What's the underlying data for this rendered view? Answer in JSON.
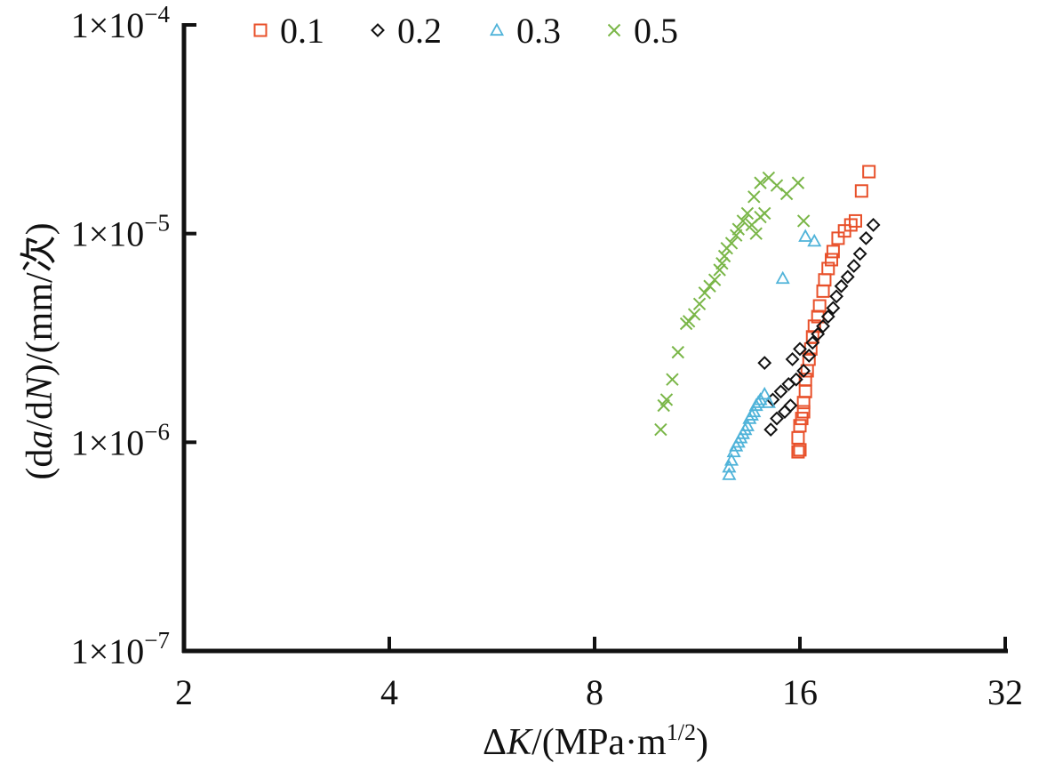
{
  "chart_data": {
    "type": "scatter",
    "title": "",
    "xlabel": "ΔK/(MPa·m^1/2)",
    "xlabel_parts": {
      "delta": "Δ",
      "var": "K",
      "unit": "/(MPa·m",
      "sup": "1/2",
      "close": ")"
    },
    "ylabel": "(da/dN)/(mm/次)",
    "ylabel_parts": {
      "p1": "(d",
      "a": "a",
      "p2": "/d",
      "N": "N",
      "p3": ")/(mm/次)"
    },
    "x_scale": "log2",
    "y_scale": "log10",
    "xlim": [
      2,
      32
    ],
    "ylim": [
      1e-07,
      0.0001
    ],
    "x_ticks": [
      2,
      4,
      8,
      16,
      32
    ],
    "x_tick_labels": [
      "2",
      "4",
      "8",
      "16",
      "32"
    ],
    "y_ticks": [
      1e-07,
      1e-06,
      1e-05,
      0.0001
    ],
    "y_tick_labels": [
      {
        "base": "1×10",
        "exp": "−7"
      },
      {
        "base": "1×10",
        "exp": "−6"
      },
      {
        "base": "1×10",
        "exp": "−5"
      },
      {
        "base": "1×10",
        "exp": "−4"
      }
    ],
    "grid": false,
    "legend_position": "top",
    "series": [
      {
        "name": "0.1",
        "marker": "square",
        "color": "#e8502a",
        "points": [
          [
            15.9,
            9e-07
          ],
          [
            16.0,
            9.2e-07
          ],
          [
            15.9,
            1.05e-06
          ],
          [
            16.0,
            1.2e-06
          ],
          [
            16.1,
            1.3e-06
          ],
          [
            16.2,
            1.4e-06
          ],
          [
            16.2,
            1.55e-06
          ],
          [
            16.3,
            1.75e-06
          ],
          [
            16.3,
            2e-06
          ],
          [
            16.4,
            2.2e-06
          ],
          [
            16.5,
            2.5e-06
          ],
          [
            16.6,
            2.8e-06
          ],
          [
            16.7,
            3.2e-06
          ],
          [
            16.8,
            3.6e-06
          ],
          [
            17.0,
            4e-06
          ],
          [
            17.1,
            4.5e-06
          ],
          [
            17.3,
            5.3e-06
          ],
          [
            17.4,
            6e-06
          ],
          [
            17.6,
            6.8e-06
          ],
          [
            17.8,
            7.5e-06
          ],
          [
            17.9,
            8.2e-06
          ],
          [
            18.2,
            9.5e-06
          ],
          [
            18.6,
            1.03e-05
          ],
          [
            19.0,
            1.1e-05
          ],
          [
            19.3,
            1.15e-05
          ],
          [
            19.7,
            1.6e-05
          ],
          [
            20.2,
            1.98e-05
          ]
        ]
      },
      {
        "name": "0.2",
        "marker": "diamond",
        "color": "#111111",
        "points": [
          [
            14.5,
            1.15e-06
          ],
          [
            14.8,
            1.3e-06
          ],
          [
            15.2,
            1.4e-06
          ],
          [
            15.5,
            1.5e-06
          ],
          [
            14.6,
            1.6e-06
          ],
          [
            15.0,
            1.75e-06
          ],
          [
            15.4,
            1.9e-06
          ],
          [
            15.8,
            2e-06
          ],
          [
            16.2,
            2.2e-06
          ],
          [
            14.2,
            2.4e-06
          ],
          [
            15.6,
            2.5e-06
          ],
          [
            16.5,
            2.6e-06
          ],
          [
            16.0,
            2.8e-06
          ],
          [
            16.7,
            3e-06
          ],
          [
            17.0,
            3.3e-06
          ],
          [
            17.3,
            3.6e-06
          ],
          [
            17.6,
            4e-06
          ],
          [
            17.9,
            4.4e-06
          ],
          [
            18.1,
            5e-06
          ],
          [
            18.4,
            5.6e-06
          ],
          [
            18.8,
            6.2e-06
          ],
          [
            19.2,
            7e-06
          ],
          [
            19.6,
            8e-06
          ],
          [
            20.0,
            9.5e-06
          ],
          [
            20.5,
            1.1e-05
          ]
        ]
      },
      {
        "name": "0.3",
        "marker": "triangle",
        "color": "#4fb3d9",
        "points": [
          [
            12.6,
            7e-07
          ],
          [
            12.6,
            7.6e-07
          ],
          [
            12.7,
            8.2e-07
          ],
          [
            12.8,
            9e-07
          ],
          [
            12.9,
            9.6e-07
          ],
          [
            13.0,
            1e-06
          ],
          [
            13.1,
            1.05e-06
          ],
          [
            13.2,
            1.1e-06
          ],
          [
            13.3,
            1.15e-06
          ],
          [
            13.4,
            1.2e-06
          ],
          [
            13.5,
            1.3e-06
          ],
          [
            13.6,
            1.35e-06
          ],
          [
            13.7,
            1.4e-06
          ],
          [
            13.8,
            1.5e-06
          ],
          [
            13.9,
            1.55e-06
          ],
          [
            14.0,
            1.6e-06
          ],
          [
            14.2,
            1.7e-06
          ],
          [
            14.4,
            1.55e-06
          ],
          [
            15.1,
            6.1e-06
          ],
          [
            16.3,
            9.7e-06
          ],
          [
            16.8,
            9.2e-06
          ]
        ]
      },
      {
        "name": "0.5",
        "marker": "cross",
        "color": "#7ab648",
        "points": [
          [
            10.0,
            1.15e-06
          ],
          [
            10.1,
            1.5e-06
          ],
          [
            10.2,
            1.6e-06
          ],
          [
            10.4,
            2e-06
          ],
          [
            10.6,
            2.7e-06
          ],
          [
            10.9,
            3.7e-06
          ],
          [
            11.0,
            3.8e-06
          ],
          [
            11.2,
            4.1e-06
          ],
          [
            11.4,
            4.6e-06
          ],
          [
            11.6,
            5.2e-06
          ],
          [
            11.8,
            5.6e-06
          ],
          [
            12.0,
            6e-06
          ],
          [
            12.2,
            6.7e-06
          ],
          [
            12.3,
            7.2e-06
          ],
          [
            12.4,
            7.8e-06
          ],
          [
            12.5,
            8.5e-06
          ],
          [
            12.7,
            9e-06
          ],
          [
            12.9,
            9.8e-06
          ],
          [
            13.0,
            1.05e-05
          ],
          [
            13.2,
            1.15e-05
          ],
          [
            13.4,
            1.25e-05
          ],
          [
            13.6,
            1.1e-05
          ],
          [
            13.8,
            1e-05
          ],
          [
            14.0,
            1.2e-05
          ],
          [
            14.2,
            1.25e-05
          ],
          [
            13.7,
            1.5e-05
          ],
          [
            14.0,
            1.75e-05
          ],
          [
            14.4,
            1.85e-05
          ],
          [
            14.8,
            1.7e-05
          ],
          [
            15.3,
            1.55e-05
          ],
          [
            15.9,
            1.75e-05
          ],
          [
            16.2,
            1.15e-05
          ]
        ]
      }
    ]
  }
}
